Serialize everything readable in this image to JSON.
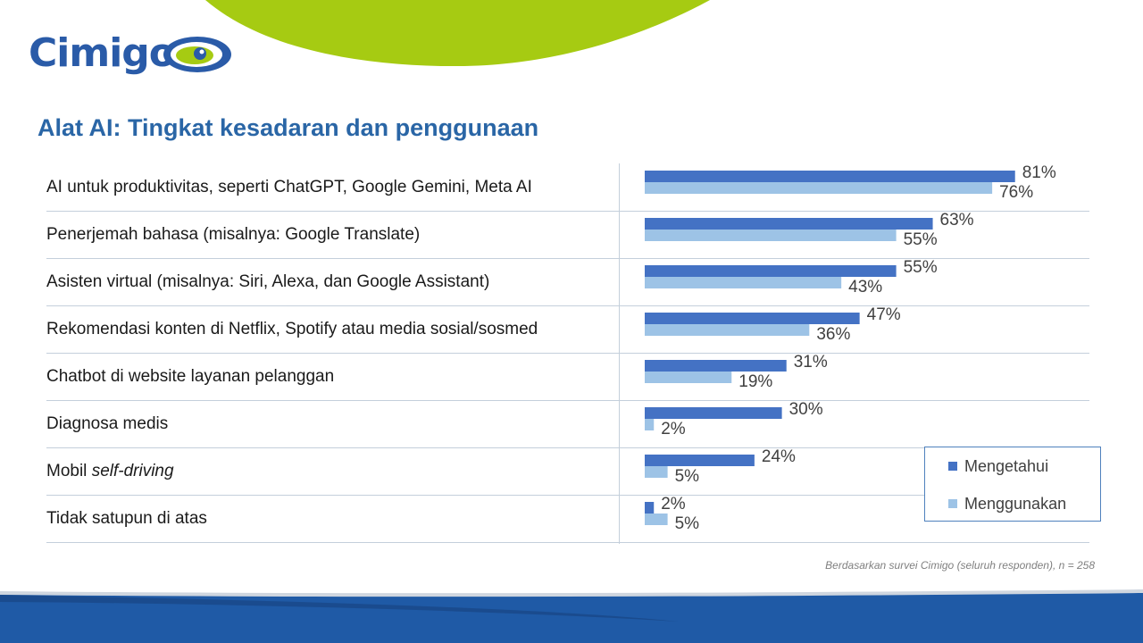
{
  "logo": {
    "text": "Cimigo"
  },
  "page": {
    "title": "Alat AI: Tingkat kesadaran dan penggunaan"
  },
  "colors": {
    "brand_blue": "#2a5ba8",
    "brand_green": "#a6cb12",
    "title_blue": "#2a66a6",
    "series_know": "#4472c4",
    "series_use": "#9dc3e6",
    "footer_blue": "#1f5aa6"
  },
  "rows": [
    {
      "label": "AI untuk produktivitas, seperti ChatGPT, Google Gemini, Meta AI",
      "italic": "",
      "know": 81,
      "use": 76
    },
    {
      "label": "Penerjemah bahasa (misalnya: Google Translate)",
      "italic": "",
      "know": 63,
      "use": 55
    },
    {
      "label": "Asisten virtual (misalnya: Siri, Alexa, dan Google Assistant)",
      "italic": "",
      "know": 55,
      "use": 43
    },
    {
      "label": "Rekomendasi konten di Netflix, Spotify atau media sosial/sosmed",
      "italic": "",
      "know": 47,
      "use": 36
    },
    {
      "label": "Chatbot di website layanan pelanggan",
      "italic": "",
      "know": 31,
      "use": 19
    },
    {
      "label": "Diagnosa medis",
      "italic": "",
      "know": 30,
      "use": 2
    },
    {
      "label": "Mobil ",
      "italic": "self-driving",
      "know": 24,
      "use": 5
    },
    {
      "label": "Tidak satupun di atas",
      "italic": "",
      "know": 2,
      "use": 5
    }
  ],
  "chart_data": {
    "type": "bar",
    "orientation": "horizontal",
    "categories": [
      "AI untuk produktivitas, seperti ChatGPT, Google Gemini, Meta AI",
      "Penerjemah bahasa (misalnya: Google Translate)",
      "Asisten virtual (misalnya: Siri, Alexa, dan Google Assistant)",
      "Rekomendasi konten di Netflix, Spotify atau media sosial/sosmed",
      "Chatbot di website layanan pelanggan",
      "Diagnosa medis",
      "Mobil self-driving",
      "Tidak satupun di atas"
    ],
    "series": [
      {
        "name": "Mengetahui",
        "color": "#4472c4",
        "values": [
          81,
          63,
          55,
          47,
          31,
          30,
          24,
          2
        ]
      },
      {
        "name": "Menggunakan",
        "color": "#9dc3e6",
        "values": [
          76,
          55,
          43,
          36,
          19,
          2,
          5,
          5
        ]
      }
    ],
    "value_suffix": "%",
    "xlim": [
      0,
      100
    ],
    "grid": false,
    "legend": "right"
  },
  "legend": {
    "items": [
      "Mengetahui",
      "Menggunakan"
    ]
  },
  "footnote": "Berdasarkan survei Cimigo (seluruh responden), n = 258"
}
